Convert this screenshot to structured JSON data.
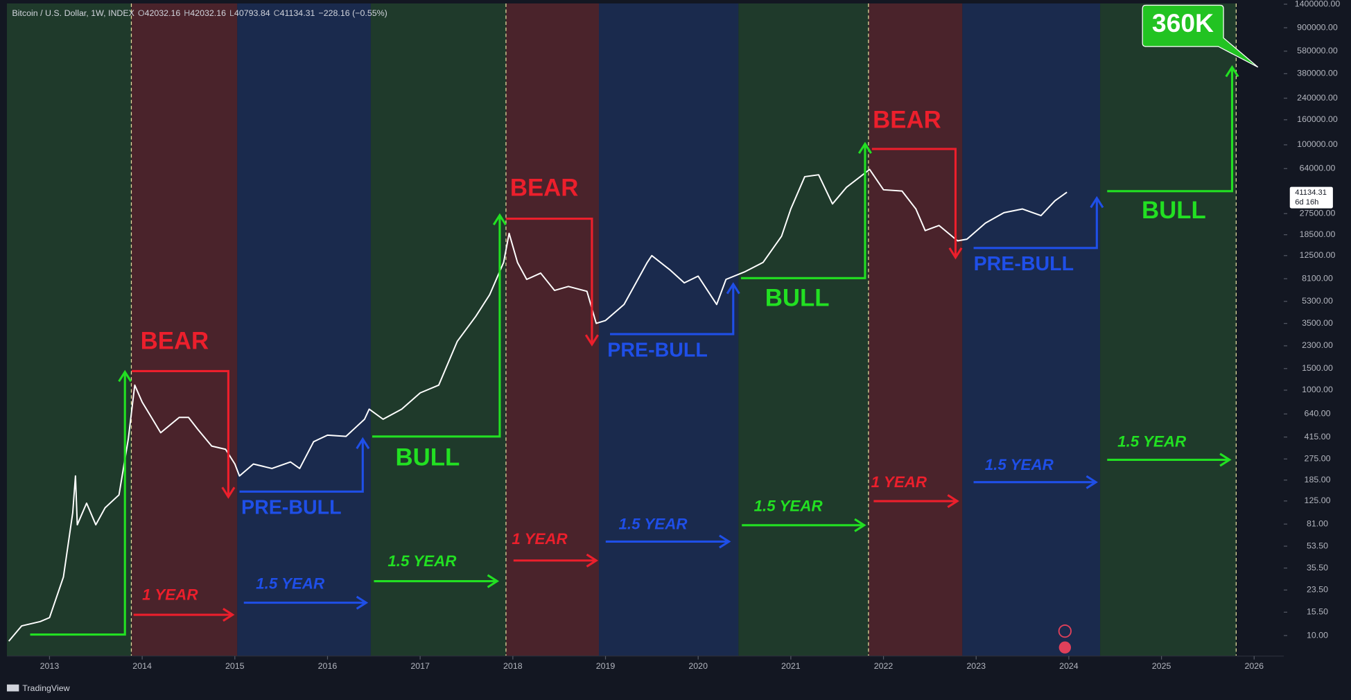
{
  "header": {
    "symbol": "Bitcoin / U.S. Dollar, 1W, INDEX",
    "ohlc": [
      {
        "key": "O",
        "value": "42032.16"
      },
      {
        "key": "H",
        "value": "42032.16"
      },
      {
        "key": "L",
        "value": "40793.84"
      },
      {
        "key": "C",
        "value": "41134.31"
      }
    ],
    "change": "−228.16 (−0.55%)"
  },
  "price_tag": {
    "price": "41134.31",
    "countdown": "6d 16h"
  },
  "footer": {
    "brand": "TradingView"
  },
  "chart_data": {
    "type": "line",
    "log_scale": true,
    "color": "#ffffff",
    "x": [
      2012.56,
      2012.7,
      2012.9,
      2013.0,
      2013.15,
      2013.25,
      2013.28,
      2013.3,
      2013.4,
      2013.5,
      2013.6,
      2013.75,
      2013.85,
      2013.92,
      2014.0,
      2014.1,
      2014.2,
      2014.4,
      2014.5,
      2014.6,
      2014.75,
      2014.9,
      2015.0,
      2015.05,
      2015.2,
      2015.4,
      2015.6,
      2015.7,
      2015.85,
      2016.0,
      2016.2,
      2016.4,
      2016.45,
      2016.6,
      2016.8,
      2017.0,
      2017.2,
      2017.4,
      2017.6,
      2017.75,
      2017.9,
      2017.96,
      2018.05,
      2018.15,
      2018.3,
      2018.45,
      2018.6,
      2018.8,
      2018.9,
      2019.0,
      2019.2,
      2019.45,
      2019.5,
      2019.7,
      2019.85,
      2020.0,
      2020.2,
      2020.3,
      2020.5,
      2020.7,
      2020.9,
      2021.0,
      2021.15,
      2021.3,
      2021.45,
      2021.6,
      2021.85,
      2022.0,
      2022.2,
      2022.35,
      2022.45,
      2022.6,
      2022.8,
      2022.9,
      2023.1,
      2023.3,
      2023.5,
      2023.7,
      2023.85,
      2023.98
    ],
    "values": [
      9,
      12,
      13,
      14,
      30,
      100,
      200,
      80,
      120,
      80,
      110,
      140,
      400,
      1100,
      800,
      600,
      450,
      600,
      600,
      480,
      350,
      330,
      250,
      200,
      250,
      230,
      260,
      230,
      380,
      430,
      420,
      580,
      700,
      580,
      700,
      950,
      1100,
      2500,
      4000,
      6000,
      11000,
      19000,
      11000,
      8000,
      9000,
      6500,
      7000,
      6400,
      3500,
      3700,
      5000,
      11000,
      12500,
      9500,
      7500,
      8500,
      5000,
      8000,
      9200,
      11000,
      18000,
      30000,
      55000,
      57000,
      33000,
      45000,
      63000,
      43000,
      42000,
      30000,
      20000,
      22000,
      16500,
      17000,
      23000,
      28000,
      30000,
      26500,
      35000,
      41134.31
    ],
    "xlim": [
      2012.54,
      2026.32
    ],
    "xticks": [
      2013,
      2014,
      2015,
      2016,
      2017,
      2018,
      2019,
      2020,
      2021,
      2022,
      2023,
      2024,
      2025,
      2026
    ],
    "ylim": [
      6.8,
      1420000
    ],
    "yticks": [
      {
        "value": 1400000,
        "label": "1400000.00"
      },
      {
        "value": 900000,
        "label": "900000.00"
      },
      {
        "value": 580000,
        "label": "580000.00"
      },
      {
        "value": 380000,
        "label": "380000.00"
      },
      {
        "value": 240000,
        "label": "240000.00"
      },
      {
        "value": 160000,
        "label": "160000.00"
      },
      {
        "value": 100000,
        "label": "100000.00"
      },
      {
        "value": 64000,
        "label": "64000.00"
      },
      {
        "value": 27500,
        "label": "27500.00"
      },
      {
        "value": 18500,
        "label": "18500.00"
      },
      {
        "value": 12500,
        "label": "12500.00"
      },
      {
        "value": 8100,
        "label": "8100.00"
      },
      {
        "value": 5300,
        "label": "5300.00"
      },
      {
        "value": 3500,
        "label": "3500.00"
      },
      {
        "value": 2300,
        "label": "2300.00"
      },
      {
        "value": 1500,
        "label": "1500.00"
      },
      {
        "value": 1000,
        "label": "1000.00"
      },
      {
        "value": 640,
        "label": "640.00"
      },
      {
        "value": 415,
        "label": "415.00"
      },
      {
        "value": 275,
        "label": "275.00"
      },
      {
        "value": 185,
        "label": "185.00"
      },
      {
        "value": 125,
        "label": "125.00"
      },
      {
        "value": 81,
        "label": "81.00"
      },
      {
        "value": 53.5,
        "label": "53.50"
      },
      {
        "value": 35.5,
        "label": "35.50"
      },
      {
        "value": 23.5,
        "label": "23.50"
      },
      {
        "value": 15.5,
        "label": "15.50"
      },
      {
        "value": 10,
        "label": "10.00"
      }
    ],
    "bands": [
      {
        "start": 2012.54,
        "end": 2013.883,
        "color": "#1f3a2b"
      },
      {
        "start": 2013.883,
        "end": 2015.026,
        "color": "#4a232b"
      },
      {
        "start": 2015.026,
        "end": 2016.467,
        "color": "#1a2a4d"
      },
      {
        "start": 2016.467,
        "end": 2017.926,
        "color": "#1f3a2b"
      },
      {
        "start": 2017.926,
        "end": 2018.929,
        "color": "#4a232b"
      },
      {
        "start": 2018.929,
        "end": 2020.435,
        "color": "#1a2a4d"
      },
      {
        "start": 2020.435,
        "end": 2021.838,
        "color": "#1f3a2b"
      },
      {
        "start": 2021.838,
        "end": 2022.851,
        "color": "#4a232b"
      },
      {
        "start": 2022.851,
        "end": 2024.338,
        "color": "#1a2a4d"
      },
      {
        "start": 2024.338,
        "end": 2025.806,
        "color": "#1f3a2b"
      }
    ],
    "dashed_lines": [
      2013.883,
      2017.926,
      2021.838,
      2025.806
    ],
    "annotations": [
      {
        "text": "BEAR",
        "color": "#ec1f2c"
      },
      {
        "text": "BEAR",
        "color": "#ec1f2c"
      },
      {
        "text": "BEAR",
        "color": "#ec1f2c"
      },
      {
        "text": "BULL",
        "color": "#22e022"
      },
      {
        "text": "BULL",
        "color": "#22e022"
      },
      {
        "text": "BULL",
        "color": "#22e022"
      },
      {
        "text": "PRE-BULL",
        "color": "#1f4fe8"
      },
      {
        "text": "PRE-BULL",
        "color": "#1f4fe8"
      },
      {
        "text": "PRE-BULL",
        "color": "#1f4fe8"
      },
      {
        "text": "1 YEAR",
        "color": "#ec1f2c"
      },
      {
        "text": "1 YEAR",
        "color": "#ec1f2c"
      },
      {
        "text": "1 YEAR",
        "color": "#ec1f2c"
      },
      {
        "text": "1.5 YEAR",
        "color": "#1f4fe8"
      },
      {
        "text": "1.5 YEAR",
        "color": "#1f4fe8"
      },
      {
        "text": "1.5 YEAR",
        "color": "#1f4fe8"
      },
      {
        "text": "1.5 YEAR",
        "color": "#22e022"
      },
      {
        "text": "1.5 YEAR",
        "color": "#22e022"
      },
      {
        "text": "1.5 YEAR",
        "color": "#22e022"
      },
      {
        "text": "360K",
        "color": "#ffffff"
      }
    ]
  }
}
